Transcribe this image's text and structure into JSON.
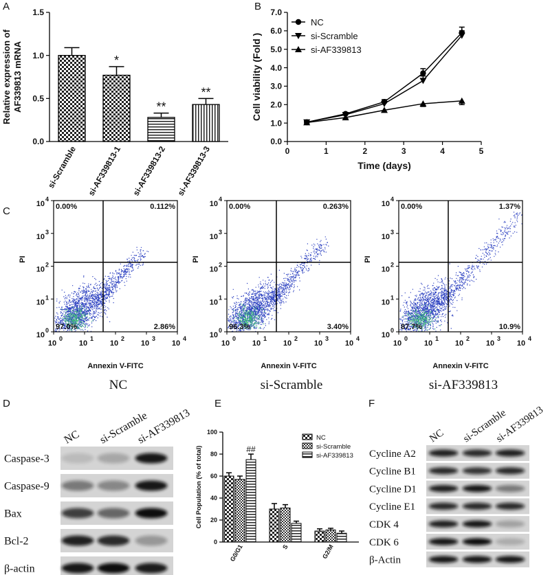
{
  "chart_data": [
    {
      "type": "bar",
      "panel": "A",
      "ylabel": [
        "Relative expression of",
        "AF339813 mRNA"
      ],
      "categories": [
        "si-Scramble",
        "si-AF339813-1",
        "si-AF339813-2",
        "si-AF339813-3"
      ],
      "values": [
        1.0,
        0.77,
        0.28,
        0.43
      ],
      "errors": [
        0.09,
        0.1,
        0.05,
        0.07
      ],
      "annotations": [
        null,
        "*",
        "**",
        "**"
      ],
      "color": "#000000",
      "ylim": [
        0,
        1.5
      ],
      "yticks": [
        {
          "value": 0,
          "label": "0.0"
        },
        0.5,
        {
          "value": 1,
          "label": "1.0"
        },
        1.5
      ]
    },
    {
      "type": "line",
      "panel": "B",
      "ylabel": "Cell viability (Fold )",
      "xlabel": "Time (days)",
      "x": [
        0.5,
        1.5,
        2.5,
        3.5,
        4.5
      ],
      "series": [
        {
          "name": "NC",
          "color": "#000000",
          "values": [
            1.05,
            1.5,
            2.15,
            3.7,
            5.9
          ],
          "errors": [
            0.05,
            0.07,
            0.12,
            0.25,
            0.3
          ]
        },
        {
          "name": "si-Scramble",
          "color": "#000000",
          "values": [
            1.05,
            1.45,
            2.05,
            3.3,
            5.75
          ],
          "errors": [
            0.05,
            0.07,
            0.12,
            0.25,
            0.25
          ]
        },
        {
          "name": "si-AF339813",
          "color": "#000000",
          "values": [
            1.03,
            1.3,
            1.7,
            2.05,
            2.2
          ],
          "errors": [
            0.05,
            0.06,
            0.1,
            0.15,
            0.2
          ]
        }
      ],
      "xlim": [
        0,
        5
      ],
      "xticks": [
        0,
        1,
        2,
        3,
        4,
        5
      ],
      "ylim": [
        0,
        7
      ],
      "yticks": [
        {
          "value": 0,
          "label": "0.0"
        },
        {
          "value": 1,
          "label": "1.0"
        },
        {
          "value": 2,
          "label": "2.0"
        },
        {
          "value": 3,
          "label": "3.0"
        },
        {
          "value": 4,
          "label": "4.0"
        },
        {
          "value": 5,
          "label": "5.0"
        },
        {
          "value": 6,
          "label": "6.0"
        },
        {
          "value": 7,
          "label": "7.0"
        }
      ]
    },
    {
      "type": "flow",
      "panel": "C",
      "caption": "NC",
      "xlabel": "Annexin V-FITC",
      "ylabel": "PI",
      "log": true,
      "values": [
        0.0,
        0.112,
        97.0,
        2.86
      ],
      "value_labels": [
        "0.00%",
        "0.112%",
        "97.0%",
        "2.86%"
      ],
      "xlim": [
        1,
        10000
      ],
      "ylim": [
        1,
        10000
      ],
      "xticks": [
        {
          "value": 1,
          "label": "10",
          "sup": "0"
        },
        {
          "value": 10,
          "label": "10",
          "sup": "1"
        },
        {
          "value": 100,
          "label": "10",
          "sup": "2"
        },
        {
          "value": 1000,
          "label": "10",
          "sup": "3"
        },
        {
          "value": 10000,
          "label": "10",
          "sup": "4"
        }
      ],
      "yticks": [
        {
          "value": 1,
          "label": "10",
          "sup": "0"
        },
        {
          "value": 10,
          "label": "10",
          "sup": "1"
        },
        {
          "value": 100,
          "label": "10",
          "sup": "2"
        },
        {
          "value": 1000,
          "label": "10",
          "sup": "3"
        },
        {
          "value": 10000,
          "label": "10",
          "sup": "4"
        }
      ]
    },
    {
      "type": "flow",
      "caption": "si-Scramble",
      "xlabel": "Annexin V-FITC",
      "ylabel": "PI",
      "log": true,
      "values": [
        0.0,
        0.263,
        96.3,
        3.4
      ],
      "value_labels": [
        "0.00%",
        "0.263%",
        "96.3%",
        "3.40%"
      ],
      "xlim": [
        1,
        10000
      ],
      "ylim": [
        1,
        10000
      ],
      "xticks": [
        {
          "value": 1,
          "label": "10",
          "sup": "0"
        },
        {
          "value": 10,
          "label": "10",
          "sup": "1"
        },
        {
          "value": 100,
          "label": "10",
          "sup": "2"
        },
        {
          "value": 1000,
          "label": "10",
          "sup": "3"
        },
        {
          "value": 10000,
          "label": "10",
          "sup": "4"
        }
      ],
      "yticks": [
        {
          "value": 1,
          "label": "10",
          "sup": "0"
        },
        {
          "value": 10,
          "label": "10",
          "sup": "1"
        },
        {
          "value": 100,
          "label": "10",
          "sup": "2"
        },
        {
          "value": 1000,
          "label": "10",
          "sup": "3"
        },
        {
          "value": 10000,
          "label": "10",
          "sup": "4"
        }
      ]
    },
    {
      "type": "flow",
      "caption": "si-AF339813",
      "xlabel": "Annexin V-FITC",
      "ylabel": "PI",
      "log": true,
      "values": [
        0.0,
        1.37,
        87.7,
        10.9
      ],
      "value_labels": [
        "0.00%",
        "1.37%",
        "87.7%",
        "10.9%"
      ],
      "xlim": [
        1,
        10000
      ],
      "ylim": [
        1,
        10000
      ],
      "xticks": [
        {
          "value": 1,
          "label": "10",
          "sup": "0"
        },
        {
          "value": 10,
          "label": "10",
          "sup": "1"
        },
        {
          "value": 100,
          "label": "10",
          "sup": "2"
        },
        {
          "value": 1000,
          "label": "10",
          "sup": "3"
        },
        {
          "value": 10000,
          "label": "10",
          "sup": "4"
        }
      ],
      "yticks": [
        {
          "value": 1,
          "label": "10",
          "sup": "0"
        },
        {
          "value": 10,
          "label": "10",
          "sup": "1"
        },
        {
          "value": 100,
          "label": "10",
          "sup": "2"
        },
        {
          "value": 1000,
          "label": "10",
          "sup": "3"
        },
        {
          "value": 10000,
          "label": "10",
          "sup": "4"
        }
      ]
    },
    {
      "type": "blot",
      "panel": "D",
      "lanes": [
        "NC",
        "si-Scramble",
        "si-AF339813"
      ],
      "rows": [
        "Caspase-3",
        "Caspase-9",
        "Bax",
        "Bcl-2",
        "β-actin"
      ]
    },
    {
      "type": "groupedbar",
      "panel": "E",
      "ylabel": "Cell Population (% of total)",
      "categories": [
        "G0/G1",
        "S",
        "G2/M"
      ],
      "series": [
        {
          "name": "NC",
          "color": "#000000",
          "values": [
            60,
            30,
            10
          ],
          "errors": [
            3,
            5,
            2
          ]
        },
        {
          "name": "si-Scramble",
          "color": "#000000",
          "values": [
            57,
            31,
            11
          ],
          "errors": [
            3,
            3,
            1.5
          ]
        },
        {
          "name": "si-AF339813",
          "color": "#000000",
          "values": [
            75,
            17,
            8
          ],
          "errors": [
            5,
            2,
            2
          ],
          "annotations": [
            "##",
            null,
            null
          ]
        }
      ],
      "ylim": [
        0,
        100
      ],
      "yticks": [
        0,
        20,
        40,
        60,
        80,
        100
      ]
    },
    {
      "type": "blot",
      "panel": "F",
      "lanes": [
        "NC",
        "si-Scramble",
        "si-AF339813"
      ],
      "rows": [
        "Cycline A2",
        "Cycline B1",
        "Cycline D1",
        "Cycline E1",
        "CDK 4",
        "CDK 6",
        "β-Actin"
      ]
    }
  ]
}
